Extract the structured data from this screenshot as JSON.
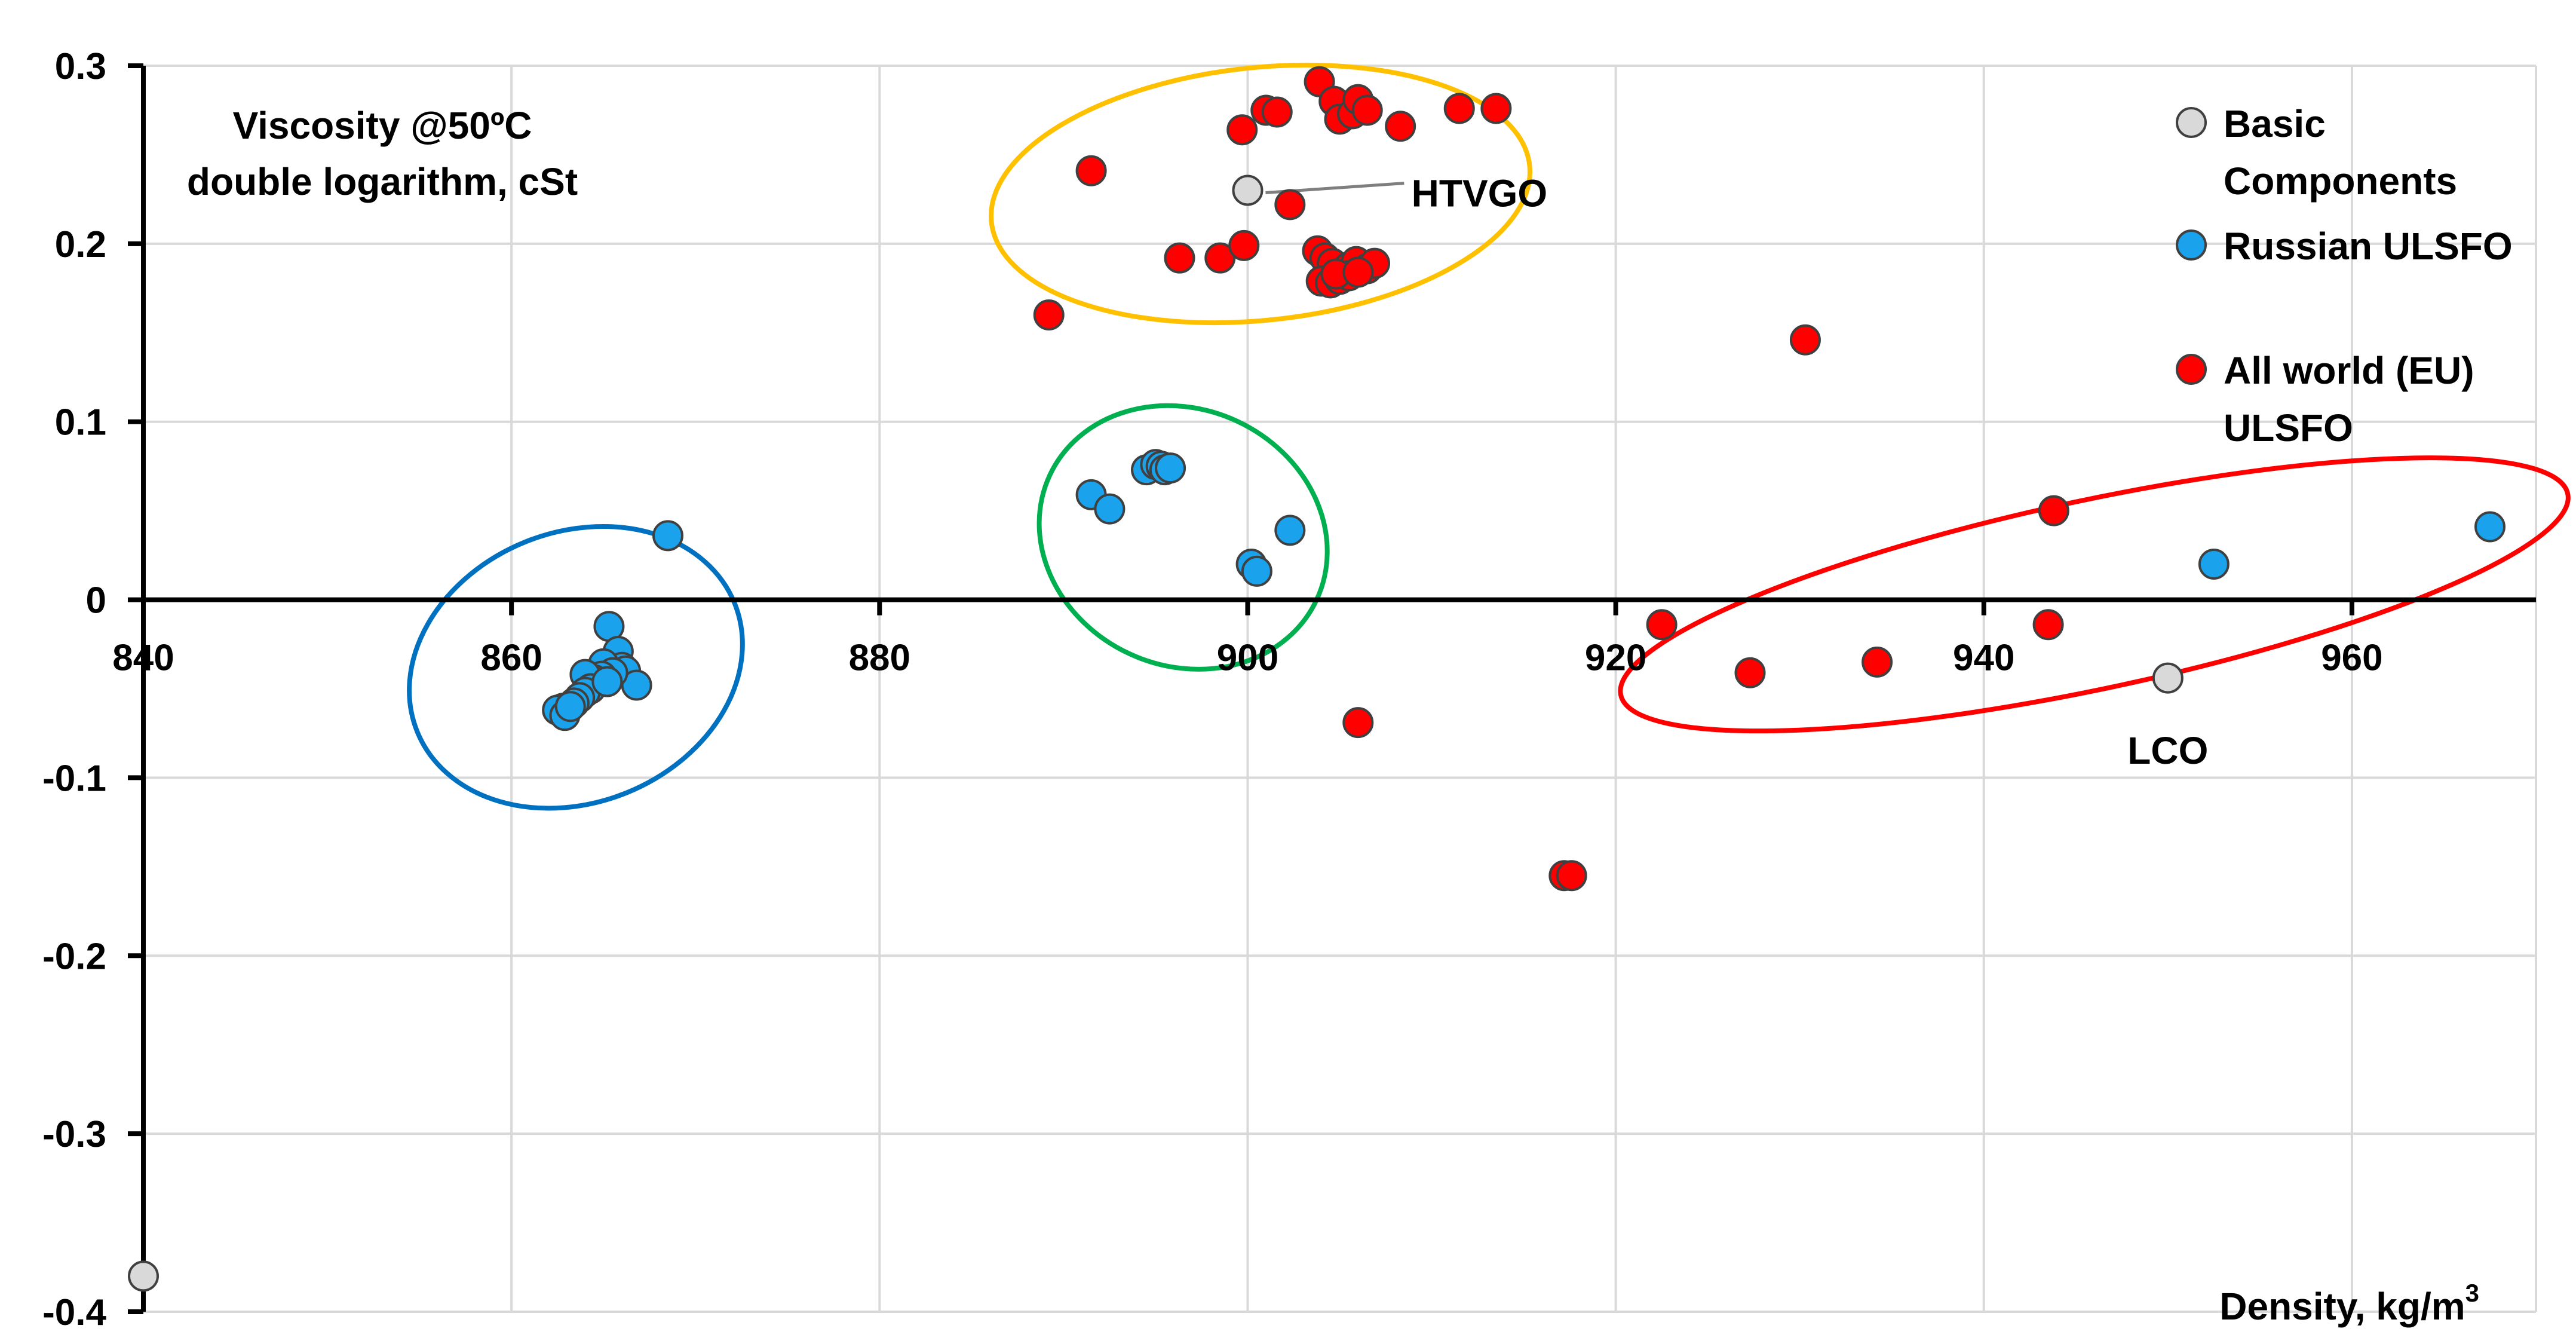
{
  "chart_data": {
    "type": "scatter",
    "title": "",
    "xlabel": "Density, kg/m",
    "xlabel_sup": "3",
    "ylabel_line1": "Viscosity @50ºC",
    "ylabel_line2": "double logarithm, cSt",
    "xlim": [
      840,
      970
    ],
    "ylim": [
      -0.4,
      0.3
    ],
    "x_ticks": [
      840,
      860,
      880,
      900,
      920,
      940,
      960
    ],
    "y_ticks": [
      0.3,
      0.2,
      0.1,
      0,
      -0.1,
      -0.2,
      -0.3,
      -0.4
    ],
    "x_tick_labels": [
      "840",
      "860",
      "880",
      "900",
      "920",
      "940",
      "960"
    ],
    "y_tick_labels": [
      "0.3",
      "0.2",
      "0.1",
      "0",
      "-0.1",
      "-0.2",
      "-0.3",
      "-0.4"
    ],
    "grid": true,
    "legend_position": "top-right",
    "series": [
      {
        "name": "Basic Components",
        "legend_lines": [
          "Basic",
          "Components"
        ],
        "color": "#d9d9d9",
        "points": [
          [
            900.0,
            0.23
          ],
          [
            950.0,
            -0.044
          ],
          [
            840.0,
            -0.38
          ]
        ]
      },
      {
        "name": "Russian ULSFO",
        "legend_lines": [
          "Russian ULSFO"
        ],
        "color": "#1aa3ec",
        "points": [
          [
            868.5,
            0.036
          ],
          [
            865.3,
            -0.015
          ],
          [
            865.8,
            -0.029
          ],
          [
            866.0,
            -0.038
          ],
          [
            866.2,
            -0.04
          ],
          [
            865.0,
            -0.036
          ],
          [
            866.8,
            -0.048
          ],
          [
            865.5,
            -0.041
          ],
          [
            864.9,
            -0.043
          ],
          [
            864.5,
            -0.045
          ],
          [
            864.0,
            -0.042
          ],
          [
            864.3,
            -0.05
          ],
          [
            864.0,
            -0.052
          ],
          [
            863.7,
            -0.055
          ],
          [
            863.4,
            -0.058
          ],
          [
            862.8,
            -0.061
          ],
          [
            862.5,
            -0.062
          ],
          [
            862.9,
            -0.065
          ],
          [
            863.2,
            -0.06
          ],
          [
            865.2,
            -0.046
          ],
          [
            891.5,
            0.059
          ],
          [
            892.5,
            0.051
          ],
          [
            894.5,
            0.073
          ],
          [
            895.0,
            0.076
          ],
          [
            895.3,
            0.075
          ],
          [
            895.5,
            0.073
          ],
          [
            895.8,
            0.074
          ],
          [
            900.2,
            0.02
          ],
          [
            900.5,
            0.016
          ],
          [
            902.3,
            0.039
          ],
          [
            952.5,
            0.02
          ],
          [
            967.5,
            0.041
          ]
        ]
      },
      {
        "name": "All world (EU) ULSFO",
        "legend_lines": [
          "All world (EU)",
          "ULSFO"
        ],
        "color": "#ff0000",
        "points": [
          [
            891.5,
            0.241
          ],
          [
            889.2,
            0.16
          ],
          [
            899.7,
            0.264
          ],
          [
            901.0,
            0.275
          ],
          [
            901.6,
            0.274
          ],
          [
            903.9,
            0.291
          ],
          [
            904.7,
            0.28
          ],
          [
            905.0,
            0.27
          ],
          [
            905.7,
            0.273
          ],
          [
            906.0,
            0.281
          ],
          [
            906.5,
            0.275
          ],
          [
            908.3,
            0.266
          ],
          [
            911.5,
            0.276
          ],
          [
            913.5,
            0.276
          ],
          [
            902.3,
            0.222
          ],
          [
            896.3,
            0.192
          ],
          [
            898.5,
            0.192
          ],
          [
            899.8,
            0.199
          ],
          [
            903.8,
            0.196
          ],
          [
            904.2,
            0.192
          ],
          [
            904.6,
            0.189
          ],
          [
            905.5,
            0.187
          ],
          [
            905.9,
            0.19
          ],
          [
            906.5,
            0.186
          ],
          [
            906.9,
            0.189
          ],
          [
            904.0,
            0.179
          ],
          [
            904.5,
            0.178
          ],
          [
            905.0,
            0.18
          ],
          [
            905.5,
            0.182
          ],
          [
            904.8,
            0.183
          ],
          [
            906.0,
            0.184
          ],
          [
            906.0,
            -0.069
          ],
          [
            917.2,
            -0.155
          ],
          [
            917.6,
            -0.155
          ],
          [
            922.5,
            -0.014
          ],
          [
            927.3,
            -0.041
          ],
          [
            930.3,
            0.146
          ],
          [
            934.2,
            -0.035
          ],
          [
            943.5,
            -0.014
          ],
          [
            943.8,
            0.05
          ]
        ]
      }
    ],
    "annotations": [
      {
        "text": "HTVGO",
        "x": 908.9,
        "y": 0.229
      },
      {
        "text": "LCO",
        "x": 950.0,
        "y": -0.084
      }
    ],
    "highlight_ellipses": [
      {
        "color": "#0070c0",
        "cx": 863.5,
        "cy": -0.038,
        "rx": 9.3,
        "ry": 0.076,
        "rotate": -22
      },
      {
        "color": "#00b050",
        "cx": 896.5,
        "cy": 0.035,
        "rx": 8.0,
        "ry": 0.072,
        "rotate": 25
      },
      {
        "color": "#ffc000",
        "cx": 900.7,
        "cy": 0.228,
        "rx": 14.7,
        "ry": 0.071,
        "rotate": -6
      },
      {
        "color": "#ff0000",
        "cx": 946.0,
        "cy": 0.003,
        "rx": 26.3,
        "ry": 0.053,
        "rotate": -12
      }
    ]
  }
}
